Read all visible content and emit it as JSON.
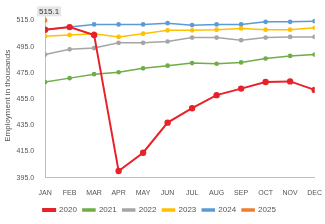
{
  "chart_data": {
    "type": "line",
    "y_label": "Employment in thousands",
    "categories": [
      "JAN",
      "FEB",
      "MAR",
      "APR",
      "MAY",
      "JUN",
      "JUL",
      "AUG",
      "SEP",
      "OCT",
      "NOV",
      "DEC"
    ],
    "series": [
      {
        "name": "2020",
        "color": "#e8212a",
        "marker": "circle",
        "values": [
          508,
          510,
          504,
          400,
          414,
          437,
          448,
          458,
          463,
          468,
          468.5,
          462
        ]
      },
      {
        "name": "2021",
        "color": "#70ad47",
        "marker": "circle",
        "values": [
          468,
          471,
          474,
          475.5,
          478.5,
          480.5,
          482.5,
          482,
          483,
          486,
          488,
          489
        ]
      },
      {
        "name": "2022",
        "color": "#a5a5a5",
        "marker": "circle",
        "values": [
          489,
          493,
          494,
          498,
          498,
          499,
          502,
          502,
          500,
          502,
          502.5,
          502.5
        ]
      },
      {
        "name": "2023",
        "color": "#ffc000",
        "marker": "circle",
        "values": [
          503,
          504,
          505,
          502.5,
          505,
          507.5,
          507.5,
          508,
          509,
          508,
          508,
          509.5
        ]
      },
      {
        "name": "2024",
        "color": "#5b9bd5",
        "marker": "circle",
        "values": [
          508,
          510,
          512,
          512,
          512,
          513,
          511.5,
          512,
          512,
          514,
          514,
          514.5
        ]
      },
      {
        "name": "2025",
        "color": "#ed7d31",
        "marker": "circle",
        "data_labels": true,
        "values": [
          515.1,
          null,
          null,
          null,
          null,
          null,
          null,
          null,
          null,
          null,
          null,
          null
        ]
      }
    ],
    "ylim": [
      395,
      520
    ],
    "yticks": [
      {
        "value": 395,
        "label": "395.0"
      },
      {
        "value": 415,
        "label": "415.0"
      },
      {
        "value": 435,
        "label": "435.0"
      },
      {
        "value": 455,
        "label": "455.0"
      },
      {
        "value": 475,
        "label": "475.0"
      },
      {
        "value": 495,
        "label": "495.0"
      },
      {
        "value": 515,
        "label": "515.0"
      }
    ],
    "grid": false,
    "legend": "bottom"
  }
}
